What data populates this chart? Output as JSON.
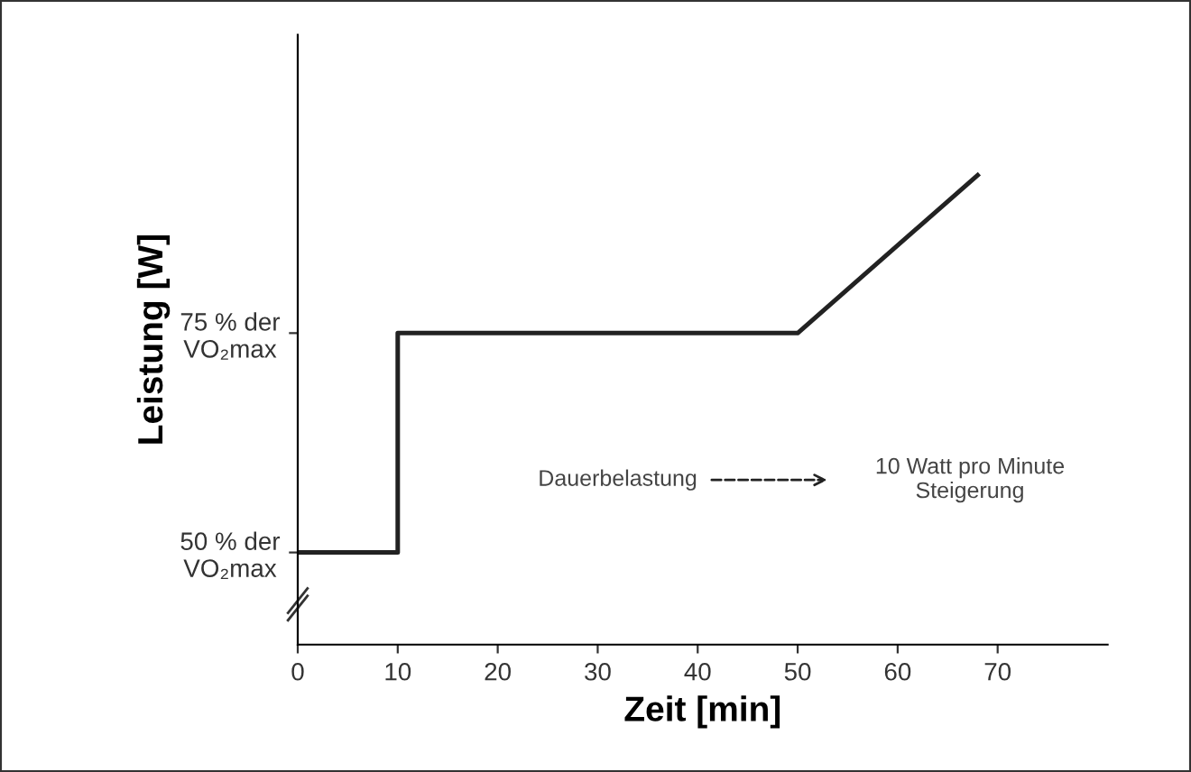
{
  "chart_data": {
    "type": "line",
    "xlabel": "Zeit [min]",
    "ylabel": "Leistung [W]",
    "x": [
      0,
      10,
      10,
      50,
      68
    ],
    "series": [
      {
        "color": "#222222",
        "values": [
          50,
          50,
          75,
          75,
          93
        ]
      }
    ],
    "xlim": [
      0,
      81
    ],
    "xticks": [
      0,
      10,
      20,
      30,
      40,
      50,
      60,
      70
    ],
    "ylim": [
      39.5,
      109
    ],
    "yticks": [
      {
        "value": 50,
        "label": "50 % der\nVO₂max"
      },
      {
        "value": 75,
        "label": "75 % der\nVO₂max"
      }
    ],
    "annotations": [
      "Dauerbelastung",
      "10 Watt pro Minute\nSteigerung"
    ],
    "grid": false,
    "legend": false,
    "marker": "none",
    "line_style": "solid"
  }
}
